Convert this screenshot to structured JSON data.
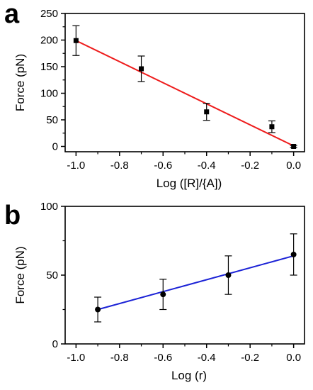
{
  "chart_data": [
    {
      "panel": "a",
      "type": "scatter",
      "xlabel": "Log ([R]/{A])",
      "ylabel": "Force (pN)",
      "xlim": [
        -1.05,
        0.05
      ],
      "ylim": [
        -10,
        250
      ],
      "xticks": [
        -1.0,
        -0.8,
        -0.6,
        -0.4,
        -0.2,
        0.0
      ],
      "xtick_labels": [
        "-1.0",
        "-0.8",
        "-0.6",
        "-0.4",
        "-0.2",
        "0.0"
      ],
      "yticks": [
        0,
        50,
        100,
        150,
        200,
        250
      ],
      "ytick_labels": [
        "0",
        "50",
        "100",
        "150",
        "200",
        "250"
      ],
      "marker": "square",
      "points": [
        {
          "x": -1.0,
          "y": 199,
          "err": 28
        },
        {
          "x": -0.7,
          "y": 146,
          "err": 24
        },
        {
          "x": -0.4,
          "y": 65,
          "err": 16
        },
        {
          "x": -0.1,
          "y": 37,
          "err": 11
        },
        {
          "x": 0.0,
          "y": 0,
          "err": 2
        }
      ],
      "fit_line": {
        "x": [
          -1.0,
          0.0
        ],
        "y": [
          199,
          1
        ],
        "color": "#ee1c1c"
      }
    },
    {
      "panel": "b",
      "type": "scatter",
      "xlabel": "Log (r)",
      "ylabel": "Force (pN)",
      "xlim": [
        -1.05,
        0.05
      ],
      "ylim": [
        0,
        100
      ],
      "xticks": [
        -1.0,
        -0.8,
        -0.6,
        -0.4,
        -0.2,
        0.0
      ],
      "xtick_labels": [
        "-1.0",
        "-0.8",
        "-0.6",
        "-0.4",
        "-0.2",
        "0.0"
      ],
      "yticks": [
        0,
        50,
        100
      ],
      "ytick_labels": [
        "0",
        "50",
        "100"
      ],
      "marker": "circle",
      "points": [
        {
          "x": -0.9,
          "y": 25,
          "err": 9
        },
        {
          "x": -0.6,
          "y": 36,
          "err": 11
        },
        {
          "x": -0.3,
          "y": 50,
          "err": 14
        },
        {
          "x": 0.0,
          "y": 65,
          "err": 15
        }
      ],
      "fit_line": {
        "x": [
          -0.9,
          0.0
        ],
        "y": [
          25,
          64
        ],
        "color": "#1b22d6"
      }
    }
  ]
}
